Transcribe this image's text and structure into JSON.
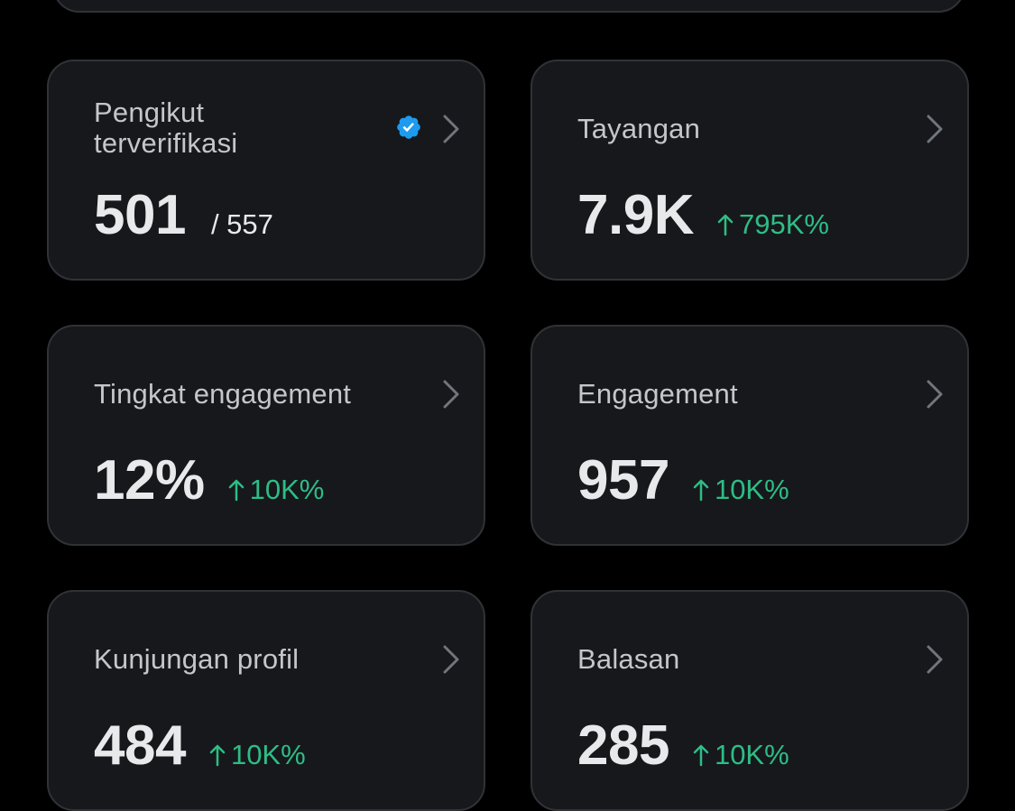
{
  "colors": {
    "background": "#000000",
    "card": "#16181c",
    "card_border": "#2f3336",
    "text_primary": "#e7e9ea",
    "text_label": "#c4c7ca",
    "positive": "#2ebd85",
    "verified_blue": "#1d9bf0",
    "chevron": "#71767b"
  },
  "cards": [
    {
      "label": "Pengikut terverifikasi",
      "value": "501",
      "sub": "/ 557",
      "verified_icon": "verified-badge-icon"
    },
    {
      "label": "Tayangan",
      "value": "7.9K",
      "delta": "795K%"
    },
    {
      "label": "Tingkat engagement",
      "value": "12%",
      "delta": "10K%"
    },
    {
      "label": "Engagement",
      "value": "957",
      "delta": "10K%"
    },
    {
      "label": "Kunjungan profil",
      "value": "484",
      "delta": "10K%"
    },
    {
      "label": "Balasan",
      "value": "285",
      "delta": "10K%"
    }
  ]
}
